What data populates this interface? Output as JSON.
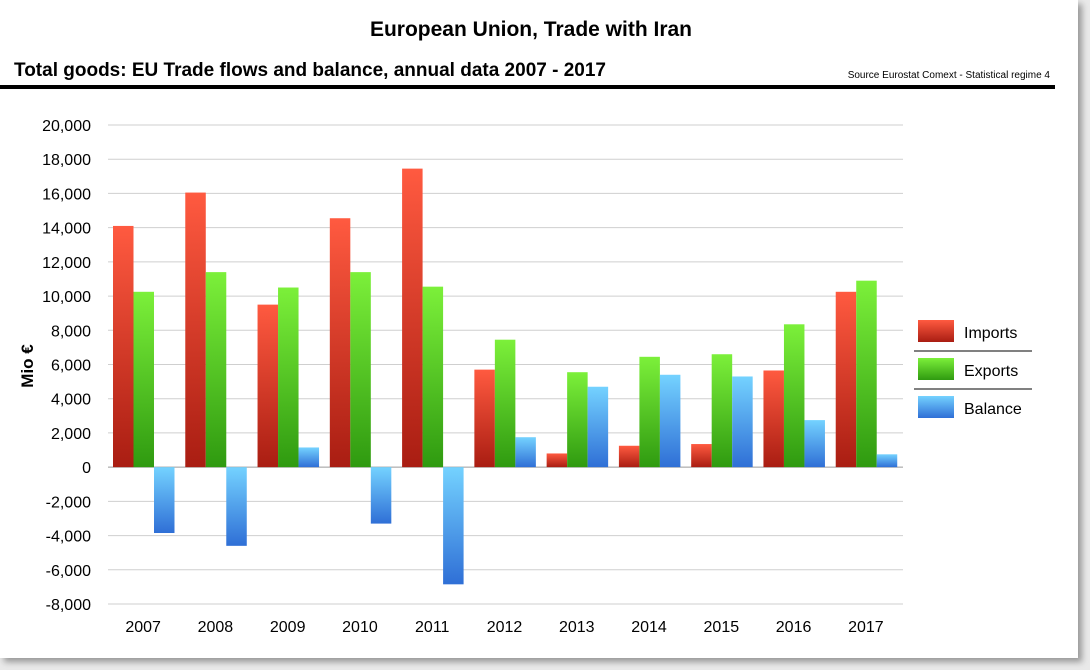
{
  "title": "European Union, Trade with Iran",
  "subtitle": "Total goods: EU Trade flows and balance, annual data 2007 - 2017",
  "source": "Source Eurostat Comext  - Statistical regime 4",
  "colors": {
    "Imports": [
      "#ff5a40",
      "#a91d12"
    ],
    "Exports": [
      "#7cf03a",
      "#2f9a10"
    ],
    "Balance": [
      "#74d2ff",
      "#2f6fd6"
    ]
  },
  "chart_data": {
    "type": "bar",
    "categories": [
      "2007",
      "2008",
      "2009",
      "2010",
      "2011",
      "2012",
      "2013",
      "2014",
      "2015",
      "2016",
      "2017"
    ],
    "series": [
      {
        "name": "Imports",
        "values": [
          14100,
          16050,
          9500,
          14550,
          17450,
          5700,
          800,
          1250,
          1350,
          5650,
          10250
        ]
      },
      {
        "name": "Exports",
        "values": [
          10250,
          11400,
          10500,
          11400,
          10550,
          7450,
          5550,
          6450,
          6600,
          8350,
          10900
        ]
      },
      {
        "name": "Balance",
        "values": [
          -3850,
          -4600,
          1150,
          -3300,
          -6850,
          1750,
          4700,
          5400,
          5300,
          2750,
          750
        ]
      }
    ],
    "ylabel": "Mio €",
    "xlabel": "",
    "ylim": [
      -8000,
      20000
    ],
    "yticks": [
      20000,
      18000,
      16000,
      14000,
      12000,
      10000,
      8000,
      6000,
      4000,
      2000,
      0,
      -2000,
      -4000,
      -6000,
      -8000
    ],
    "ytick_labels": [
      "20,000",
      "18,000",
      "16,000",
      "14,000",
      "12,000",
      "10,000",
      "8,000",
      "6,000",
      "4,000",
      "2,000",
      "0",
      "-2,000",
      "-4,000",
      "-6,000",
      "-8,000"
    ],
    "grid": true,
    "legend": "right"
  }
}
